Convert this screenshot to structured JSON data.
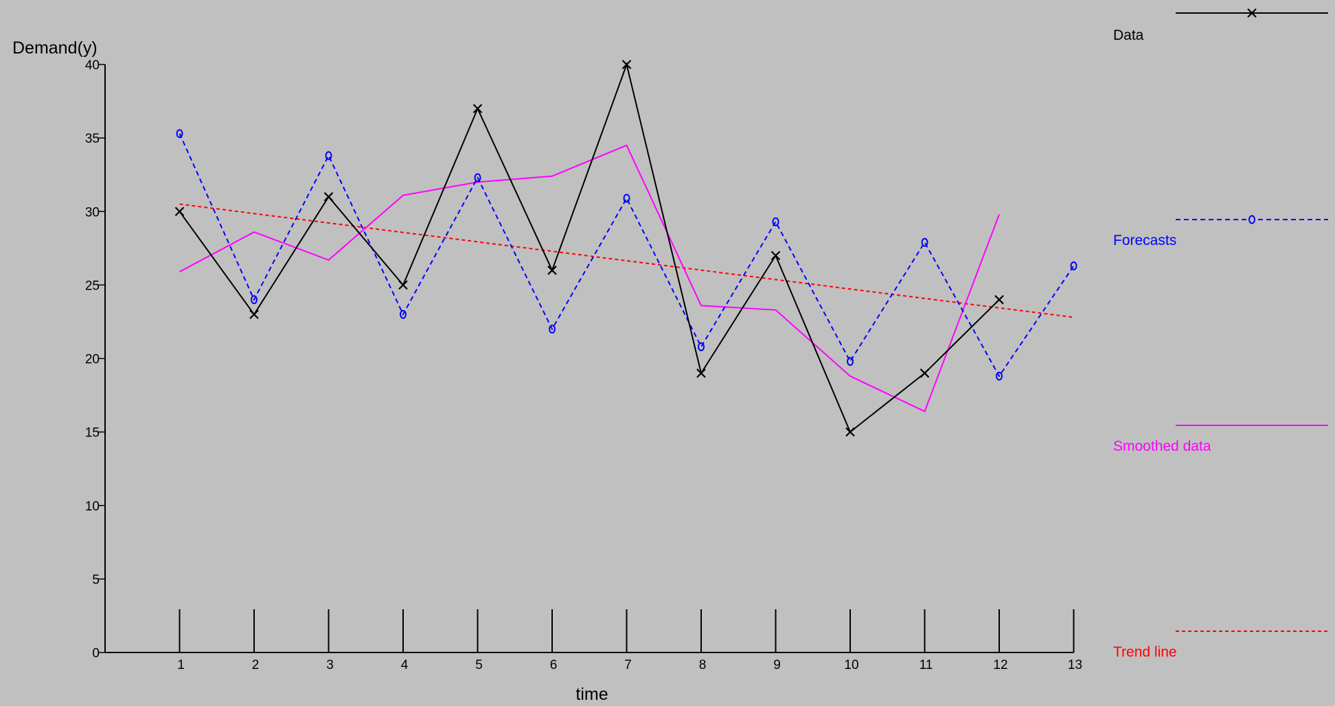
{
  "chart_data": {
    "type": "line",
    "title": "",
    "xlabel": "time",
    "ylabel": "Demand(y)",
    "xlim": [
      0,
      13
    ],
    "ylim": [
      0,
      40
    ],
    "x_ticks": [
      1,
      2,
      3,
      4,
      5,
      6,
      7,
      8,
      9,
      10,
      11,
      12,
      13
    ],
    "y_ticks": [
      0,
      5,
      10,
      15,
      20,
      25,
      30,
      35,
      40
    ],
    "grid": false,
    "legend_position": "right",
    "series": [
      {
        "name": "Data",
        "color": "#000000",
        "style": "solid",
        "marker": "x",
        "x": [
          1,
          2,
          3,
          4,
          5,
          6,
          7,
          8,
          9,
          10,
          11,
          12
        ],
        "values": [
          30,
          23,
          31,
          25,
          37,
          26,
          40,
          19,
          27,
          15,
          19,
          24
        ]
      },
      {
        "name": "Forecasts",
        "color": "#0000ff",
        "style": "dashed",
        "marker": "o",
        "x": [
          1,
          2,
          3,
          4,
          5,
          6,
          7,
          8,
          9,
          10,
          11,
          12,
          13
        ],
        "values": [
          35.3,
          24.0,
          33.8,
          23.0,
          32.3,
          22.0,
          30.9,
          20.8,
          29.3,
          19.8,
          27.9,
          18.8,
          26.3
        ]
      },
      {
        "name": "Smoothed data",
        "color": "#ff00ff",
        "style": "solid",
        "marker": "none",
        "x": [
          1,
          2,
          3,
          4,
          5,
          6,
          7,
          8,
          9,
          10,
          11,
          12
        ],
        "values": [
          25.9,
          28.6,
          26.7,
          31.1,
          32.0,
          32.4,
          34.5,
          23.6,
          23.3,
          18.8,
          16.4,
          29.8
        ]
      },
      {
        "name": "Trend line",
        "color": "#ff0000",
        "style": "dotted",
        "marker": "none",
        "x": [
          1,
          13
        ],
        "values": [
          30.5,
          22.8
        ]
      }
    ]
  }
}
